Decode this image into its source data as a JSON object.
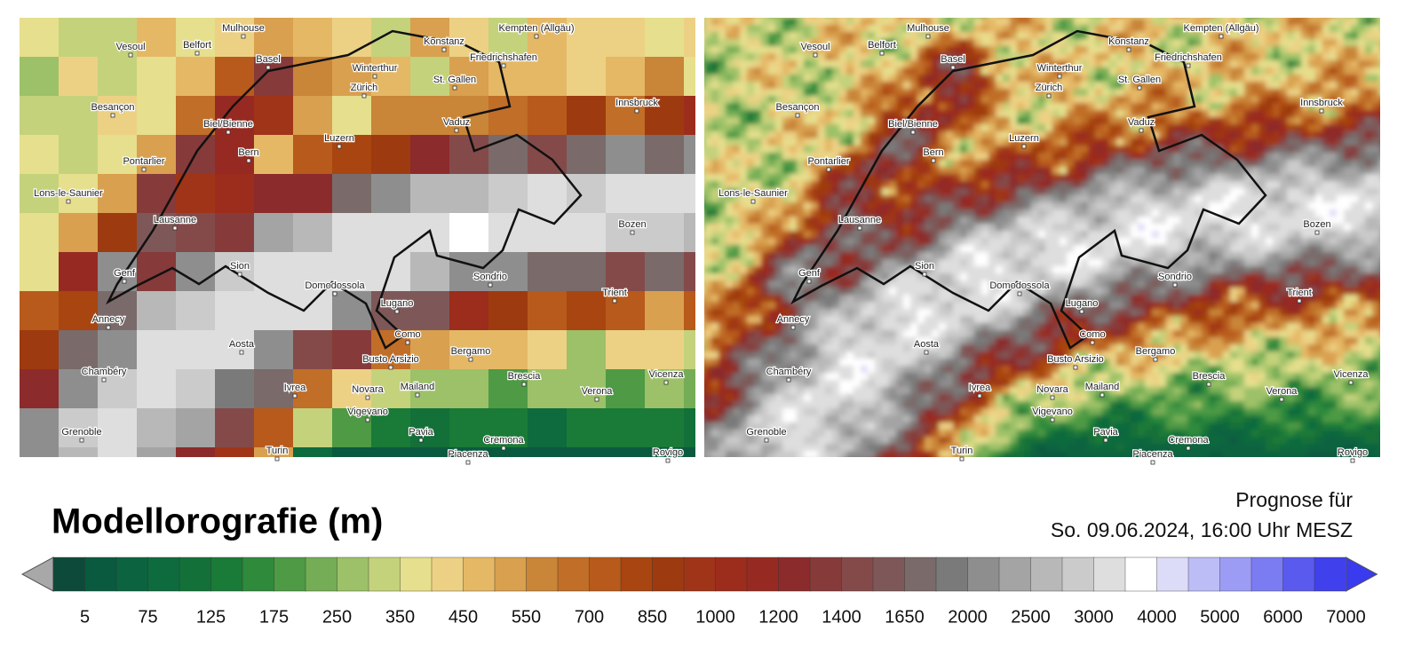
{
  "header": {
    "title": "Modellorografie (m)",
    "forecast_label": "Prognose für",
    "forecast_time": "So. 09.06.2024, 16:00 Uhr MESZ"
  },
  "colorbar": {
    "labels": [
      5,
      75,
      125,
      175,
      250,
      350,
      450,
      550,
      700,
      850,
      1000,
      1200,
      1400,
      1650,
      2000,
      2500,
      3000,
      4000,
      5000,
      6000,
      7000
    ],
    "colors": [
      "#0e4a3a",
      "#0a5a40",
      "#0b6340",
      "#0d6b3e",
      "#127038",
      "#1a7a37",
      "#2f8a3c",
      "#4e9a45",
      "#74ad55",
      "#9cc168",
      "#c4d27c",
      "#e6df8d",
      "#ecd184",
      "#e5b866",
      "#d9a04f",
      "#c98538",
      "#c06e28",
      "#b85a1b",
      "#a84510",
      "#9e3a10",
      "#a03418",
      "#9c2c1c",
      "#962a22",
      "#8c2b2b",
      "#873a3a",
      "#844a4a",
      "#7e5858",
      "#7a6a6a",
      "#7a7a7a",
      "#8e8e8e",
      "#a4a4a4",
      "#b8b8b8",
      "#cbcbcb",
      "#dedede",
      "#ffffff",
      "#dcdcf8",
      "#bcbcf6",
      "#9c9cf4",
      "#7c7cf2",
      "#5a5aee",
      "#4040ec"
    ]
  },
  "map": {
    "cities": [
      "Mulhouse",
      "Vesoul",
      "Belfort",
      "Basel",
      "Kempten (Allgäu)",
      "Konstanz",
      "Winterthur",
      "Friedrichshafen",
      "Zürich",
      "St. Gallen",
      "Besançon",
      "Biel/Bienne",
      "Vaduz",
      "Innsbruck",
      "Luzern",
      "Bern",
      "Pontarlier",
      "Lons-le-Saunier",
      "Lausanne",
      "Bozen",
      "Genf",
      "Sion",
      "Sondrio",
      "Trient",
      "Domodossola",
      "Lugano",
      "Annecy",
      "Como",
      "Aosta",
      "Bergamo",
      "Busto Arsizio",
      "Brescia",
      "Chambéry",
      "Ivrea",
      "Novara",
      "Mailand",
      "Verona",
      "Vicenza",
      "Vigevano",
      "Pavia",
      "Grenoble",
      "Cremona",
      "Turin",
      "Piacenza",
      "Rovigo"
    ]
  }
}
